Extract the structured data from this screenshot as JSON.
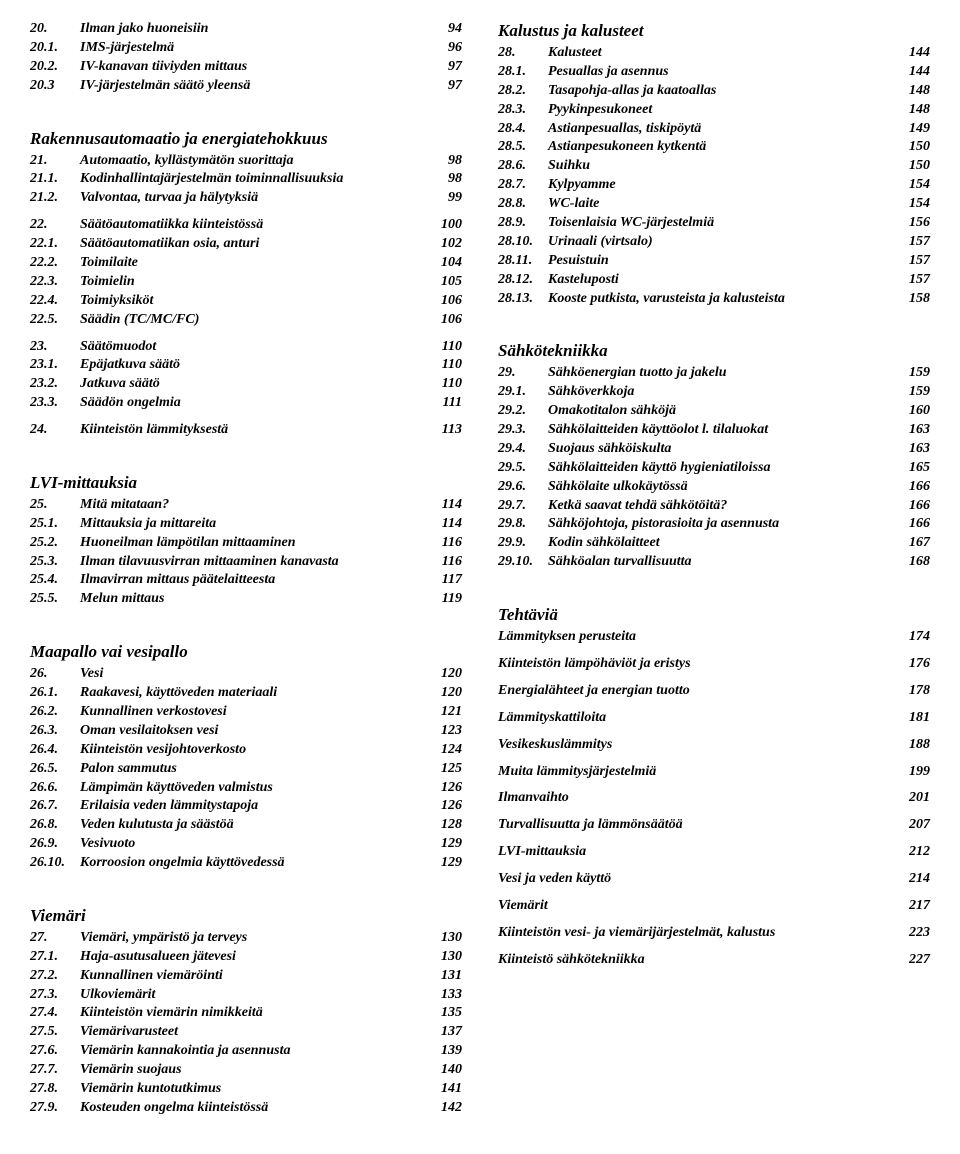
{
  "left": [
    {
      "type": "line",
      "bold": true,
      "italic": true,
      "num": "20.",
      "label": "Ilman jako huoneisiin",
      "page": "94"
    },
    {
      "type": "line",
      "bold": true,
      "italic": true,
      "num": "20.1.",
      "label": "IMS-järjestelmä",
      "page": "96"
    },
    {
      "type": "line",
      "bold": true,
      "italic": true,
      "num": "20.2.",
      "label": "IV-kanavan tiiviyden mittaus",
      "page": "97"
    },
    {
      "type": "line",
      "bold": true,
      "italic": true,
      "num": "20.3",
      "label": "IV-järjestelmän säätö yleensä",
      "page": "97"
    },
    {
      "type": "spacer"
    },
    {
      "type": "heading",
      "text": "Rakennusautomaatio ja energiatehokkuus"
    },
    {
      "type": "line",
      "bold": true,
      "italic": true,
      "num": "21.",
      "label": "Automaatio, kyllästymätön suorittaja",
      "page": "98"
    },
    {
      "type": "line",
      "bold": true,
      "italic": true,
      "num": "21.1.",
      "label": "Kodinhallintajärjestelmän toiminnallisuuksia",
      "page": "98"
    },
    {
      "type": "line",
      "bold": true,
      "italic": true,
      "num": "21.2.",
      "label": "Valvontaa, turvaa ja hälytyksiä",
      "page": "99"
    },
    {
      "type": "spacer-sm"
    },
    {
      "type": "line",
      "bold": true,
      "italic": true,
      "num": "22.",
      "label": "Säätöautomatiikka kiinteistössä",
      "page": "100"
    },
    {
      "type": "line",
      "bold": true,
      "italic": true,
      "num": "22.1.",
      "label": "Säätöautomatiikan osia, anturi",
      "page": "102"
    },
    {
      "type": "line",
      "bold": true,
      "italic": true,
      "num": "22.2.",
      "label": "Toimilaite",
      "page": "104"
    },
    {
      "type": "line",
      "bold": true,
      "italic": true,
      "num": "22.3.",
      "label": "Toimielin",
      "page": "105"
    },
    {
      "type": "line",
      "bold": true,
      "italic": true,
      "num": "22.4.",
      "label": "Toimiyksiköt",
      "page": "106"
    },
    {
      "type": "line",
      "bold": true,
      "italic": true,
      "num": "22.5.",
      "label": "Säädin (TC/MC/FC)",
      "page": "106"
    },
    {
      "type": "spacer-sm"
    },
    {
      "type": "line",
      "bold": true,
      "italic": true,
      "num": "23.",
      "label": "Säätömuodot",
      "page": "110"
    },
    {
      "type": "line",
      "bold": true,
      "italic": true,
      "num": "23.1.",
      "label": "Epäjatkuva säätö",
      "page": "110"
    },
    {
      "type": "line",
      "bold": true,
      "italic": true,
      "num": "23.2.",
      "label": "Jatkuva säätö",
      "page": "110"
    },
    {
      "type": "line",
      "bold": true,
      "italic": true,
      "num": "23.3.",
      "label": "Säädön ongelmia",
      "page": "111"
    },
    {
      "type": "spacer-sm"
    },
    {
      "type": "line",
      "bold": true,
      "italic": true,
      "num": "24.",
      "label": "Kiinteistön lämmityksestä",
      "page": "113"
    },
    {
      "type": "spacer"
    },
    {
      "type": "heading",
      "text": "LVI-mittauksia"
    },
    {
      "type": "line",
      "bold": true,
      "italic": true,
      "num": "25.",
      "label": "Mitä mitataan?",
      "page": "114"
    },
    {
      "type": "line",
      "bold": true,
      "italic": true,
      "num": "25.1.",
      "label": "Mittauksia ja mittareita",
      "page": "114"
    },
    {
      "type": "line",
      "bold": true,
      "italic": true,
      "num": "25.2.",
      "label": "Huoneilman lämpötilan mittaaminen",
      "page": "116"
    },
    {
      "type": "line",
      "bold": true,
      "italic": true,
      "num": "25.3.",
      "label": "Ilman tilavuusvirran mittaaminen kanavasta",
      "page": "116"
    },
    {
      "type": "line",
      "bold": true,
      "italic": true,
      "num": "25.4.",
      "label": "Ilmavirran mittaus päätelaitteesta",
      "page": "117"
    },
    {
      "type": "line",
      "bold": true,
      "italic": true,
      "num": "25.5.",
      "label": "Melun mittaus",
      "page": "119"
    },
    {
      "type": "spacer"
    },
    {
      "type": "heading",
      "text": "Maapallo vai vesipallo"
    },
    {
      "type": "line",
      "bold": true,
      "italic": true,
      "num": "26.",
      "label": "Vesi",
      "page": "120"
    },
    {
      "type": "line",
      "bold": true,
      "italic": true,
      "num": "26.1.",
      "label": "Raakavesi, käyttöveden materiaali",
      "page": "120"
    },
    {
      "type": "line",
      "bold": true,
      "italic": true,
      "num": "26.2.",
      "label": "Kunnallinen verkostovesi",
      "page": "121"
    },
    {
      "type": "line",
      "bold": true,
      "italic": true,
      "num": "26.3.",
      "label": "Oman vesilaitoksen vesi",
      "page": "123"
    },
    {
      "type": "line",
      "bold": true,
      "italic": true,
      "num": "26.4.",
      "label": "Kiinteistön vesijohtoverkosto",
      "page": "124"
    },
    {
      "type": "line",
      "bold": true,
      "italic": true,
      "num": "26.5.",
      "label": "Palon sammutus",
      "page": "125"
    },
    {
      "type": "line",
      "bold": true,
      "italic": true,
      "num": "26.6.",
      "label": "Lämpimän käyttöveden valmistus",
      "page": "126"
    },
    {
      "type": "line",
      "bold": true,
      "italic": true,
      "num": "26.7.",
      "label": "Erilaisia veden lämmitystapoja",
      "page": "126"
    },
    {
      "type": "line",
      "bold": true,
      "italic": true,
      "num": "26.8.",
      "label": "Veden kulutusta ja säästöä",
      "page": "128"
    },
    {
      "type": "line",
      "bold": true,
      "italic": true,
      "num": "26.9.",
      "label": "Vesivuoto",
      "page": "129"
    },
    {
      "type": "line",
      "bold": true,
      "italic": true,
      "num": "26.10.",
      "label": "Korroosion ongelmia käyttövedessä",
      "page": "129"
    },
    {
      "type": "spacer"
    },
    {
      "type": "heading",
      "text": "Viemäri"
    },
    {
      "type": "line",
      "bold": true,
      "italic": true,
      "num": "27.",
      "label": "Viemäri, ympäristö ja terveys",
      "page": "130"
    },
    {
      "type": "line",
      "bold": true,
      "italic": true,
      "num": "27.1.",
      "label": "Haja-asutusalueen jätevesi",
      "page": "130"
    },
    {
      "type": "line",
      "bold": true,
      "italic": true,
      "num": "27.2.",
      "label": "Kunnallinen viemäröinti",
      "page": "131"
    },
    {
      "type": "line",
      "bold": true,
      "italic": true,
      "num": "27.3.",
      "label": "Ulkoviemärit",
      "page": "133"
    },
    {
      "type": "line",
      "bold": true,
      "italic": true,
      "num": "27.4.",
      "label": "Kiinteistön viemärin nimikkeitä",
      "page": "135"
    },
    {
      "type": "line",
      "bold": true,
      "italic": true,
      "num": "27.5.",
      "label": "Viemärivarusteet",
      "page": "137"
    },
    {
      "type": "line",
      "bold": true,
      "italic": true,
      "num": "27.6.",
      "label": "Viemärin kannakointia ja asennusta",
      "page": "139"
    },
    {
      "type": "line",
      "bold": true,
      "italic": true,
      "num": "27.7.",
      "label": "Viemärin suojaus",
      "page": "140"
    },
    {
      "type": "line",
      "bold": true,
      "italic": true,
      "num": "27.8.",
      "label": "Viemärin kuntotutkimus",
      "page": "141"
    },
    {
      "type": "line",
      "bold": true,
      "italic": true,
      "num": "27.9.",
      "label": "Kosteuden ongelma kiinteistössä",
      "page": "142"
    }
  ],
  "right": [
    {
      "type": "heading",
      "text": "Kalustus ja kalusteet"
    },
    {
      "type": "line",
      "bold": true,
      "italic": true,
      "num": "28.",
      "label": "Kalusteet",
      "page": "144"
    },
    {
      "type": "line",
      "bold": true,
      "italic": true,
      "num": "28.1.",
      "label": "Pesuallas ja asennus",
      "page": "144"
    },
    {
      "type": "line",
      "bold": true,
      "italic": true,
      "num": "28.2.",
      "label": "Tasapohja-allas ja kaatoallas",
      "page": "148"
    },
    {
      "type": "line",
      "bold": true,
      "italic": true,
      "num": "28.3.",
      "label": "Pyykinpesukoneet",
      "page": "148"
    },
    {
      "type": "line",
      "bold": true,
      "italic": true,
      "num": "28.4.",
      "label": "Astianpesuallas, tiskipöytä",
      "page": "149"
    },
    {
      "type": "line",
      "bold": true,
      "italic": true,
      "num": "28.5.",
      "label": "Astianpesukoneen kytkentä",
      "page": "150"
    },
    {
      "type": "line",
      "bold": true,
      "italic": true,
      "num": "28.6.",
      "label": "Suihku",
      "page": "150"
    },
    {
      "type": "line",
      "bold": true,
      "italic": true,
      "num": "28.7.",
      "label": "Kylpyamme",
      "page": "154"
    },
    {
      "type": "line",
      "bold": true,
      "italic": true,
      "num": "28.8.",
      "label": "WC-laite",
      "page": "154"
    },
    {
      "type": "line",
      "bold": true,
      "italic": true,
      "num": "28.9.",
      "label": "Toisenlaisia WC-järjestelmiä",
      "page": "156"
    },
    {
      "type": "line",
      "bold": true,
      "italic": true,
      "num": "28.10.",
      "label": "Urinaali (virtsalo)",
      "page": "157"
    },
    {
      "type": "line",
      "bold": true,
      "italic": true,
      "num": "28.11.",
      "label": "Pesuistuin",
      "page": "157"
    },
    {
      "type": "line",
      "bold": true,
      "italic": true,
      "num": "28.12.",
      "label": "Kasteluposti",
      "page": "157"
    },
    {
      "type": "line",
      "bold": true,
      "italic": true,
      "num": "28.13.",
      "label": "Kooste putkista, varusteista ja kalusteista",
      "page": "158"
    },
    {
      "type": "spacer"
    },
    {
      "type": "heading",
      "text": "Sähkötekniikka"
    },
    {
      "type": "line",
      "bold": true,
      "italic": true,
      "num": "29.",
      "label": "Sähköenergian tuotto ja jakelu",
      "page": "159"
    },
    {
      "type": "line",
      "bold": true,
      "italic": true,
      "num": "29.1.",
      "label": "Sähköverkkoja",
      "page": "159"
    },
    {
      "type": "line",
      "bold": true,
      "italic": true,
      "num": "29.2.",
      "label": "Omakotitalon sähköjä",
      "page": "160"
    },
    {
      "type": "line",
      "bold": true,
      "italic": true,
      "num": "29.3.",
      "label": "Sähkölaitteiden käyttöolot l. tilaluokat",
      "page": "163"
    },
    {
      "type": "line",
      "bold": true,
      "italic": true,
      "num": "29.4.",
      "label": "Suojaus sähköiskulta",
      "page": "163"
    },
    {
      "type": "line",
      "bold": true,
      "italic": true,
      "num": "29.5.",
      "label": "Sähkölaitteiden käyttö hygieniatiloissa",
      "page": "165"
    },
    {
      "type": "line",
      "bold": true,
      "italic": true,
      "num": "29.6.",
      "label": "Sähkölaite ulkokäytössä",
      "page": "166"
    },
    {
      "type": "line",
      "bold": true,
      "italic": true,
      "num": "29.7.",
      "label": "Ketkä saavat tehdä sähkötöitä?",
      "page": "166"
    },
    {
      "type": "line",
      "bold": true,
      "italic": true,
      "num": "29.8.",
      "label": "Sähköjohtoja, pistorasioita ja asennusta",
      "page": "166"
    },
    {
      "type": "line",
      "bold": true,
      "italic": true,
      "num": "29.9.",
      "label": "Kodin sähkölaitteet",
      "page": "167"
    },
    {
      "type": "line",
      "bold": true,
      "italic": true,
      "num": "29.10.",
      "label": "Sähköalan turvallisuutta",
      "page": "168"
    },
    {
      "type": "spacer"
    },
    {
      "type": "heading",
      "text": "Tehtäviä"
    },
    {
      "type": "simple",
      "label": "Lämmityksen perusteita",
      "page": "174"
    },
    {
      "type": "spacer-sm"
    },
    {
      "type": "simple",
      "label": "Kiinteistön lämpöhäviöt ja eristys",
      "page": "176"
    },
    {
      "type": "spacer-sm"
    },
    {
      "type": "simple",
      "label": "Energialähteet ja energian tuotto",
      "page": "178"
    },
    {
      "type": "spacer-sm"
    },
    {
      "type": "simple",
      "label": "Lämmityskattiloita",
      "page": "181"
    },
    {
      "type": "spacer-sm"
    },
    {
      "type": "simple",
      "label": "Vesikeskuslämmitys",
      "page": "188"
    },
    {
      "type": "spacer-sm"
    },
    {
      "type": "simple",
      "label": "Muita lämmitysjärjestelmiä",
      "page": "199"
    },
    {
      "type": "spacer-sm"
    },
    {
      "type": "simple",
      "label": "Ilmanvaihto",
      "page": "201"
    },
    {
      "type": "spacer-sm"
    },
    {
      "type": "simple",
      "label": "Turvallisuutta ja lämmönsäätöä",
      "page": "207"
    },
    {
      "type": "spacer-sm"
    },
    {
      "type": "simple",
      "label": "LVI-mittauksia",
      "page": "212"
    },
    {
      "type": "spacer-sm"
    },
    {
      "type": "simple",
      "label": "Vesi ja veden käyttö",
      "page": "214"
    },
    {
      "type": "spacer-sm"
    },
    {
      "type": "simple",
      "label": "Viemärit",
      "page": "217"
    },
    {
      "type": "spacer-sm"
    },
    {
      "type": "simple",
      "label": "Kiinteistön vesi- ja viemärijärjestelmät, kalustus",
      "page": "223"
    },
    {
      "type": "spacer-sm"
    },
    {
      "type": "simple",
      "label": "Kiinteistö sähkötekniikka",
      "page": "227"
    }
  ]
}
